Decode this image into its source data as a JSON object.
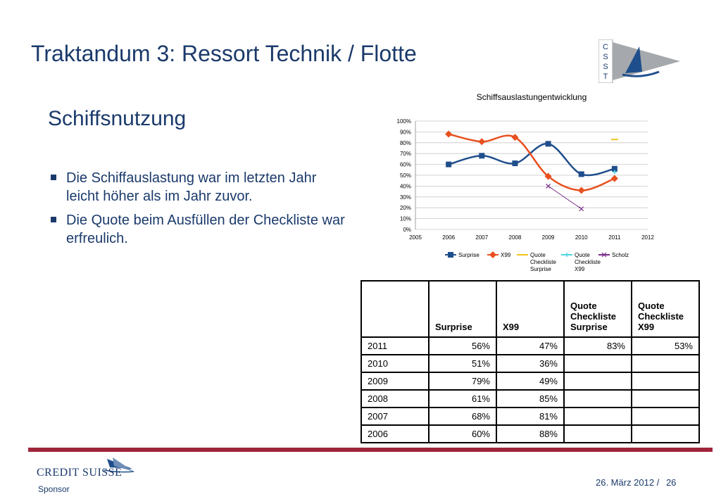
{
  "title": "Traktandum 3: Ressort Technik / Flotte",
  "logo": {
    "letters": [
      "C",
      "S",
      "S",
      "T"
    ]
  },
  "subtitle": "Schiffsnutzung",
  "bullets": [
    "Die Schiffauslastung war im letzten Jahr leicht höher als im Jahr zuvor.",
    "Die Quote beim Ausfüllen der Checkliste war erfreulich."
  ],
  "chart_data": {
    "type": "line",
    "title": "Schiffsauslastungentwicklung",
    "x_ticks": [
      "2005",
      "2006",
      "2007",
      "2008",
      "2009",
      "2010",
      "2011",
      "2012"
    ],
    "y_ticks": [
      "0%",
      "10%",
      "20%",
      "30%",
      "40%",
      "50%",
      "60%",
      "70%",
      "80%",
      "90%",
      "100%"
    ],
    "xlim": [
      2005,
      2012
    ],
    "ylim": [
      0,
      100
    ],
    "grid": true,
    "legend_position": "bottom",
    "series": [
      {
        "name": "Surprise",
        "color": "#1f4e8c",
        "marker": "square",
        "x": [
          2006,
          2007,
          2008,
          2009,
          2010,
          2011
        ],
        "values": [
          60,
          68,
          61,
          79,
          51,
          56
        ]
      },
      {
        "name": "X99",
        "color": "#e8501f",
        "marker": "diamond",
        "x": [
          2006,
          2007,
          2008,
          2009,
          2010,
          2011
        ],
        "values": [
          88,
          81,
          85,
          49,
          36,
          47
        ]
      },
      {
        "name": "Quote Checkliste Surprise",
        "color": "#f0c419",
        "marker": "dash",
        "x": [
          2011
        ],
        "values": [
          83
        ]
      },
      {
        "name": "Quote Checkliste X99",
        "color": "#4fd4e4",
        "marker": "star",
        "x": [
          2011
        ],
        "values": [
          53
        ]
      },
      {
        "name": "Scholz",
        "color": "#7a2a8a",
        "marker": "x",
        "x": [
          2009,
          2010
        ],
        "values": [
          40,
          19
        ]
      }
    ]
  },
  "table": {
    "headers": [
      "",
      "Surprise",
      "X99",
      "Quote Checkliste Surprise",
      "Quote Checkliste X99"
    ],
    "rows": [
      [
        "2011",
        "56%",
        "47%",
        "83%",
        "53%"
      ],
      [
        "2010",
        "51%",
        "36%",
        "",
        ""
      ],
      [
        "2009",
        "79%",
        "49%",
        "",
        ""
      ],
      [
        "2008",
        "61%",
        "85%",
        "",
        ""
      ],
      [
        "2007",
        "68%",
        "81%",
        "",
        ""
      ],
      [
        "2006",
        "60%",
        "88%",
        "",
        ""
      ]
    ]
  },
  "sponsor_logo": "CREDIT SUISSE",
  "sponsor": "Sponsor",
  "footer": {
    "date": "26. März 2012 /",
    "page": "26"
  }
}
